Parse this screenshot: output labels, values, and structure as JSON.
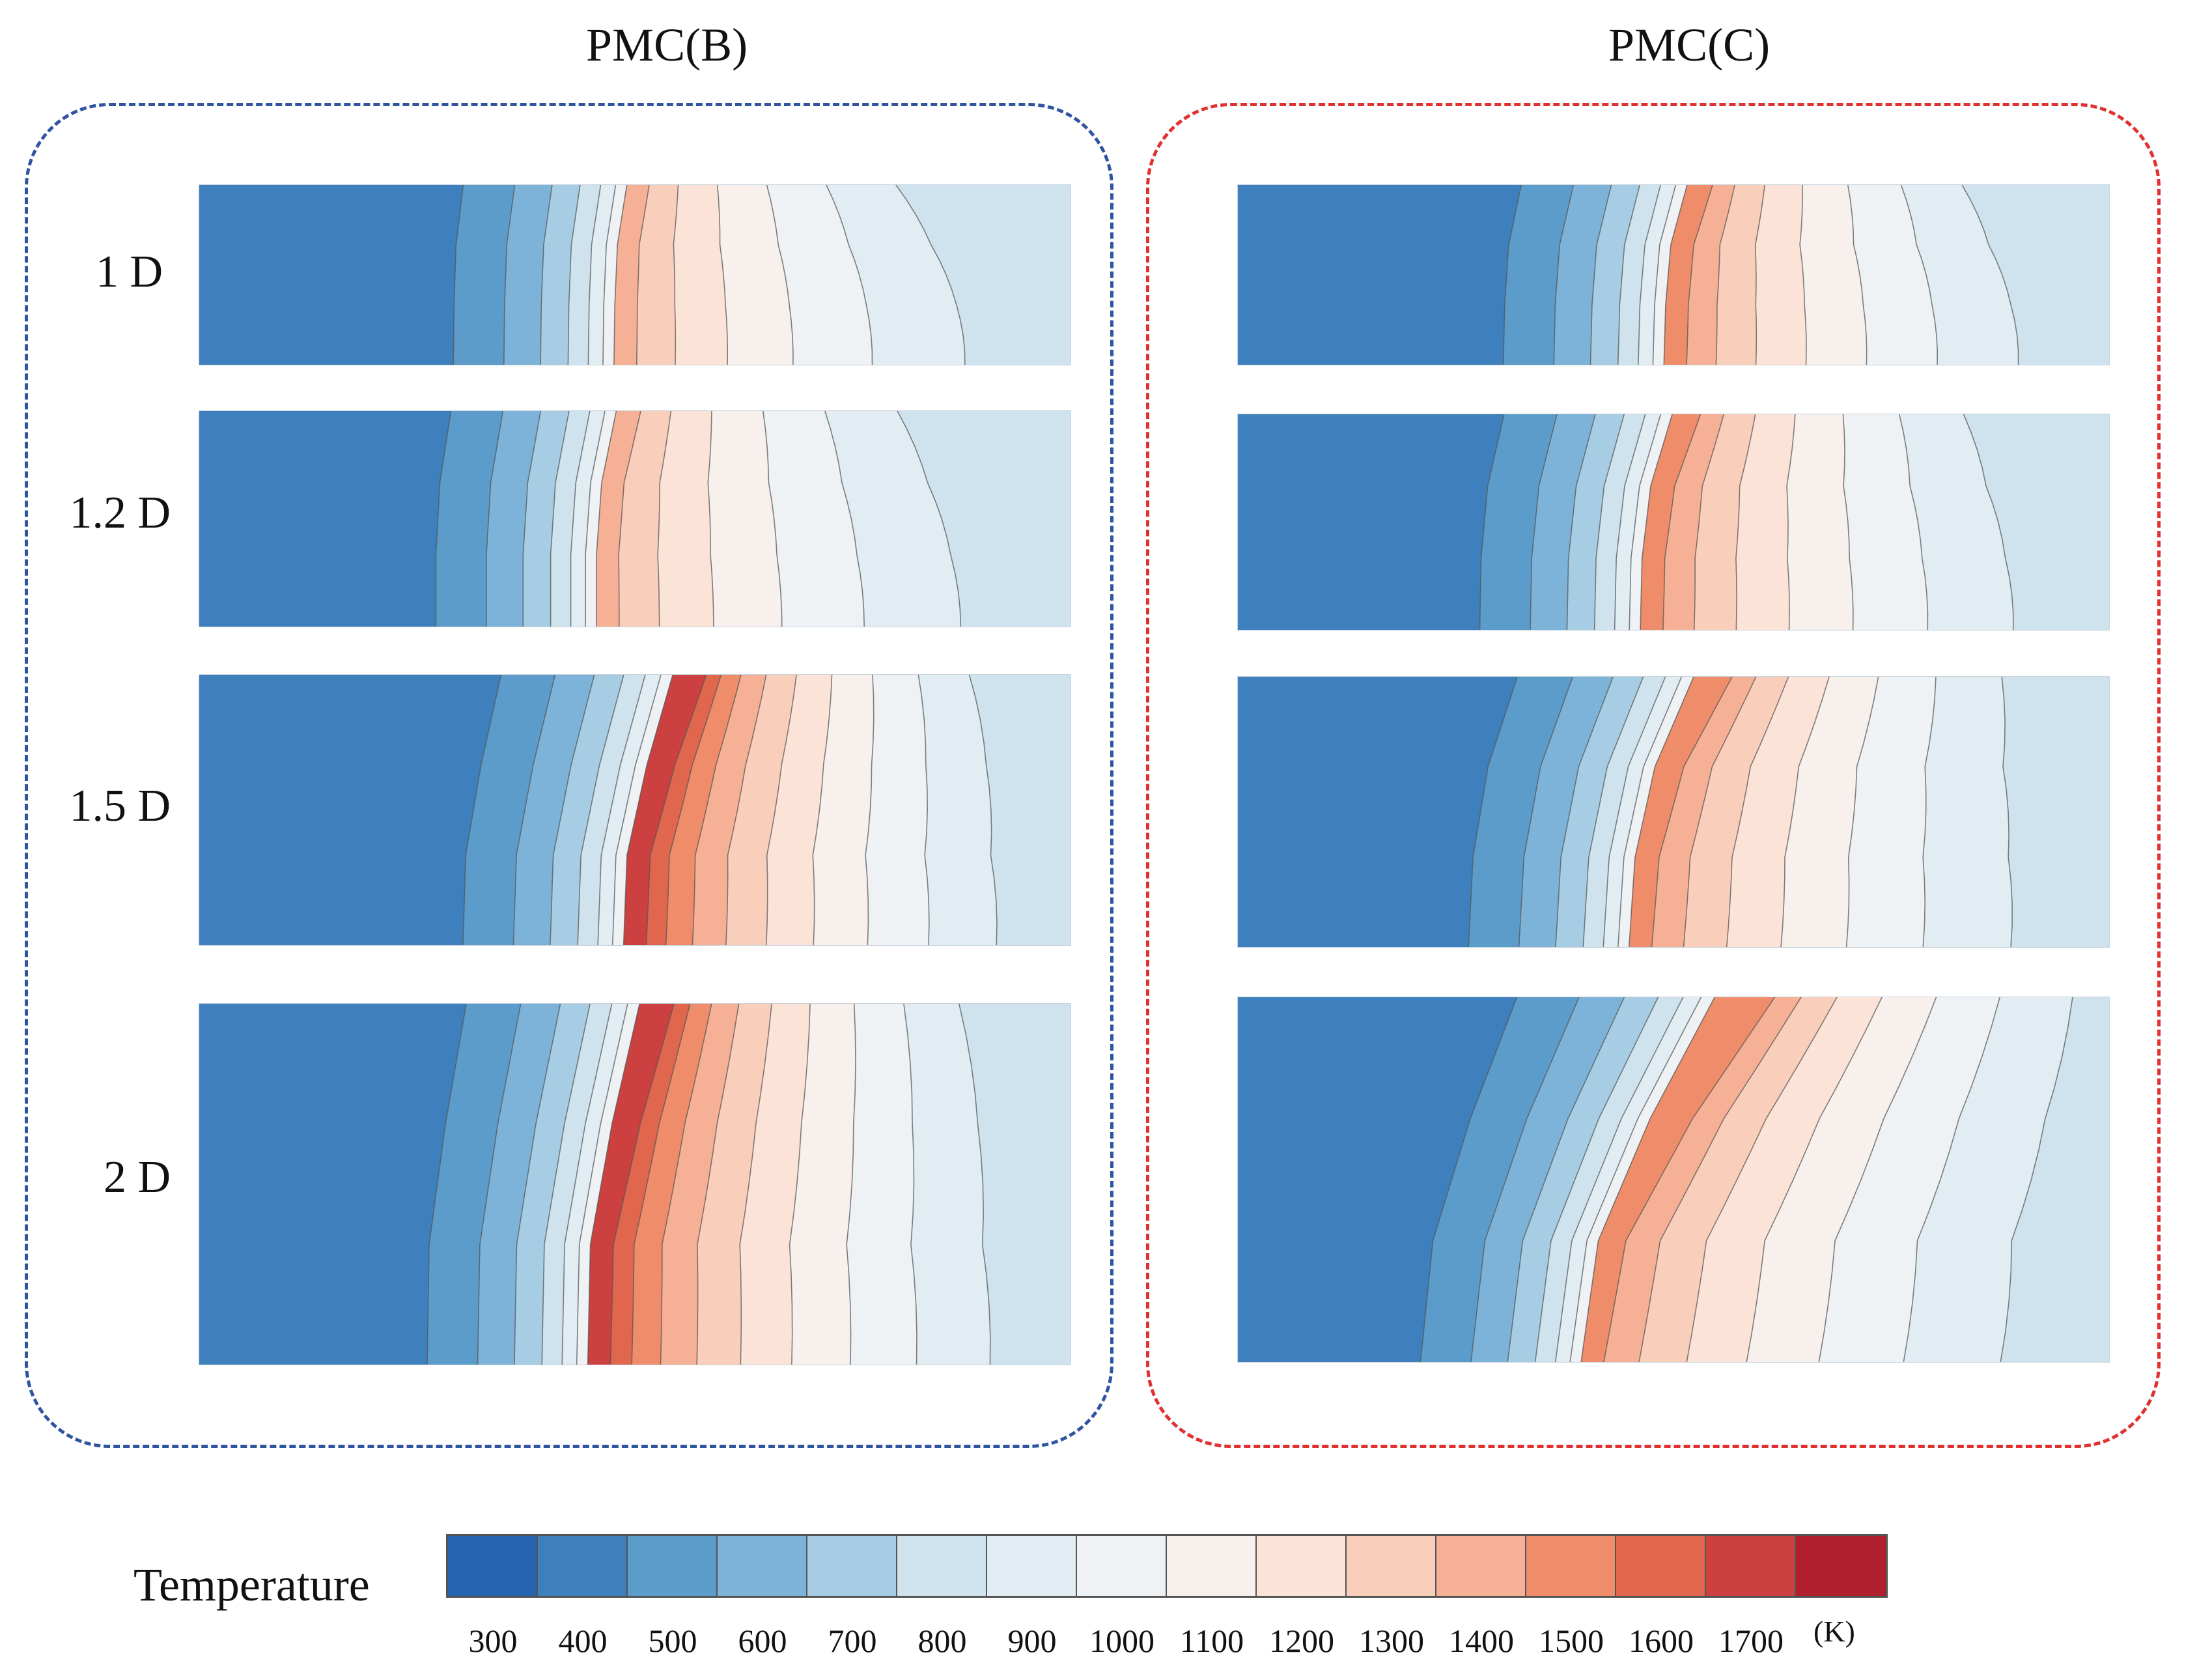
{
  "chart_data": {
    "type": "heatmap",
    "groups": [
      {
        "title": "PMC(B)",
        "frame_color": "#2f54a0",
        "rows": [
          {
            "label": "1 D",
            "front_x": [
              0.497,
              0.486,
              0.483,
              0.482
            ],
            "hot_band": 3
          },
          {
            "label": "1.2 D",
            "front_x": [
              0.485,
              0.468,
              0.462,
              0.462
            ],
            "hot_band": 3
          },
          {
            "label": "1.5 D",
            "front_x": [
              0.55,
              0.52,
              0.497,
              0.493
            ],
            "hot_band": 6
          },
          {
            "label": "2 D",
            "front_x": [
              0.512,
              0.48,
              0.455,
              0.452
            ],
            "hot_band": 6
          }
        ]
      },
      {
        "title": "PMC(C)",
        "frame_color": "#e03030",
        "rows": [
          {
            "label": "1 D",
            "front_x": [
              0.522,
              0.503,
              0.497,
              0.495
            ],
            "hot_band": 4
          },
          {
            "label": "1.2 D",
            "front_x": [
              0.505,
              0.48,
              0.47,
              0.468
            ],
            "hot_band": 4
          },
          {
            "label": "1.5 D",
            "front_x": [
              0.53,
              0.485,
              0.462,
              0.455
            ],
            "hot_band": 4
          },
          {
            "label": "2 D",
            "front_x": [
              0.555,
              0.48,
              0.42,
              0.4
            ],
            "hot_band": 4
          }
        ]
      }
    ],
    "colorbar": {
      "title": "Temperature",
      "unit": "(K)",
      "ticks": [
        "300",
        "400",
        "500",
        "600",
        "700",
        "800",
        "900",
        "1000",
        "1100",
        "1200",
        "1300",
        "1400",
        "1500",
        "1600",
        "1700"
      ],
      "colors": [
        "#2463ad",
        "#3d80bd",
        "#5b9ccb",
        "#7db3d9",
        "#a6cde3",
        "#cfe3ee",
        "#e2ecf3",
        "#eef2f5",
        "#f7f0ec",
        "#fbe3d7",
        "#f9cfbc",
        "#f6b095",
        "#ef8d6a",
        "#e0664d",
        "#cc4040",
        "#b01f2e"
      ]
    }
  }
}
